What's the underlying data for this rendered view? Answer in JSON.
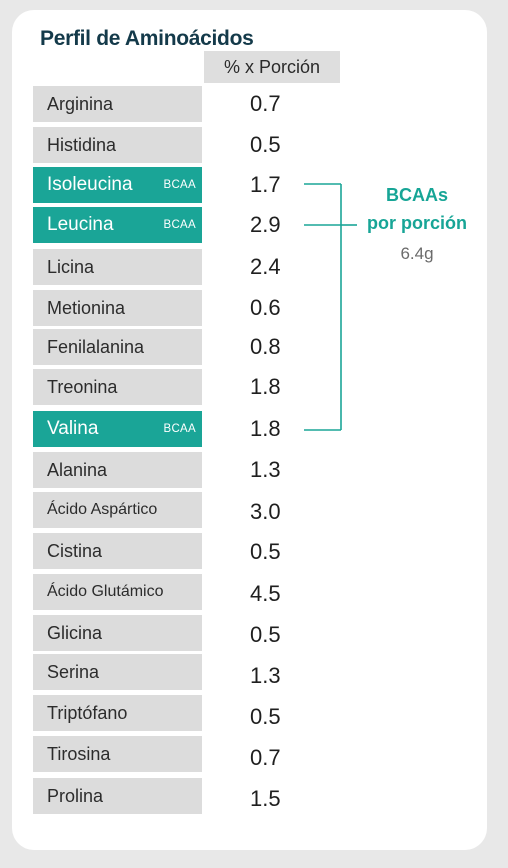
{
  "title": "Perfil de Aminoácidos",
  "column_header": "% x Porción",
  "bcaa_tag": "BCAA",
  "rows": [
    {
      "name": "Arginina",
      "value": "0.7"
    },
    {
      "name": "Histidina",
      "value": "0.5"
    },
    {
      "name": "Isoleucina",
      "value": "1.7",
      "bcaa": true
    },
    {
      "name": "Leucina",
      "value": "2.9",
      "bcaa": true
    },
    {
      "name": "Licina",
      "value": "2.4"
    },
    {
      "name": "Metionina",
      "value": "0.6"
    },
    {
      "name": "Fenilalanina",
      "value": "0.8"
    },
    {
      "name": "Treonina",
      "value": "1.8"
    },
    {
      "name": "Valina",
      "value": "1.8",
      "bcaa": true
    },
    {
      "name": "Alanina",
      "value": "1.3"
    },
    {
      "name": "Ácido Aspártico",
      "value": "3.0"
    },
    {
      "name": "Cistina",
      "value": "0.5"
    },
    {
      "name": "Ácido Glutámico",
      "value": "4.5"
    },
    {
      "name": "Glicina",
      "value": "0.5"
    },
    {
      "name": "Serina",
      "value": "1.3"
    },
    {
      "name": "Triptófano",
      "value": "0.5"
    },
    {
      "name": "Tirosina",
      "value": "0.7"
    },
    {
      "name": "Prolina",
      "value": "1.5"
    }
  ],
  "bcaa_summary": {
    "line1": "BCAAs",
    "line2": "por porción",
    "value": "6.4g"
  },
  "colors": {
    "accent": "#1aa597",
    "title": "#143a4a",
    "label_bg": "#dcdcdc"
  }
}
